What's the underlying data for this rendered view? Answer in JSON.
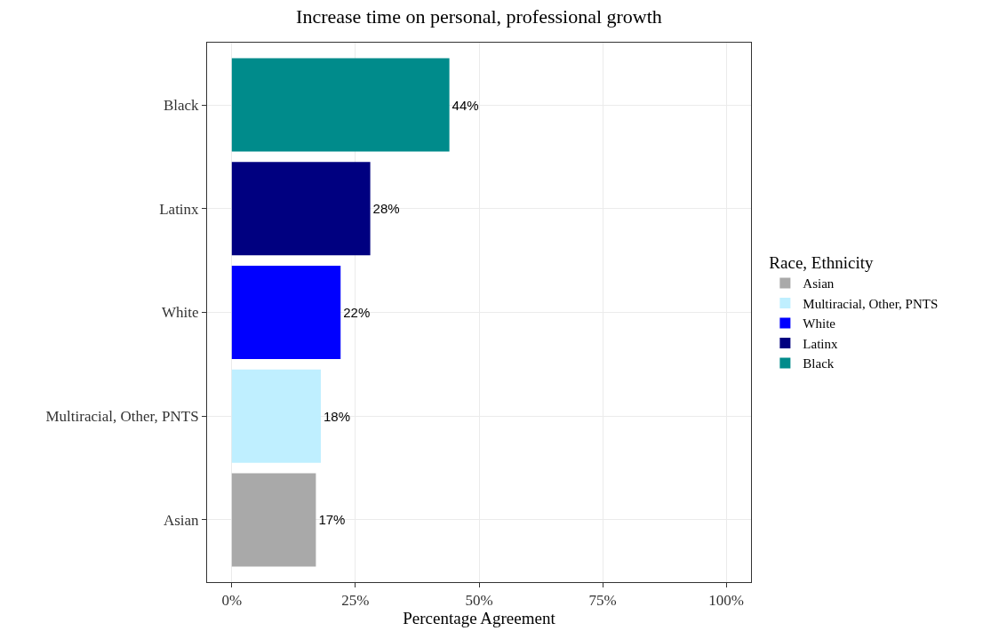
{
  "chart_data": {
    "type": "bar",
    "orientation": "horizontal",
    "title": "Increase time on personal, professional growth",
    "xlabel": "Percentage Agreement",
    "legend_title": "Race, Ethnicity",
    "categories": [
      "Black",
      "Latinx",
      "White",
      "Multiracial, Other, PNTS",
      "Asian"
    ],
    "series": [
      {
        "name": "Asian",
        "color": "#a9a9a9",
        "values": [
          null,
          null,
          null,
          null,
          17
        ],
        "value_labels": [
          null,
          null,
          null,
          null,
          "17%"
        ]
      },
      {
        "name": "Multiracial, Other, PNTS",
        "color": "#bfefff",
        "values": [
          null,
          null,
          null,
          18,
          null
        ],
        "value_labels": [
          null,
          null,
          null,
          "18%",
          null
        ]
      },
      {
        "name": "White",
        "color": "#0000ff",
        "values": [
          null,
          null,
          22,
          null,
          null
        ],
        "value_labels": [
          null,
          null,
          "22%",
          null,
          null
        ]
      },
      {
        "name": "Latinx",
        "color": "#000080",
        "values": [
          null,
          28,
          null,
          null,
          null
        ],
        "value_labels": [
          null,
          "28%",
          null,
          null,
          null
        ]
      },
      {
        "name": "Black",
        "color": "#008b8b",
        "values": [
          44,
          null,
          null,
          null,
          null
        ],
        "value_labels": [
          "44%",
          null,
          null,
          null,
          null
        ]
      }
    ],
    "xlim": [
      -5,
      105
    ],
    "xticks": [
      {
        "value": 0,
        "label": "0%"
      },
      {
        "value": 25,
        "label": "25%"
      },
      {
        "value": 50,
        "label": "50%"
      },
      {
        "value": 75,
        "label": "75%"
      },
      {
        "value": 100,
        "label": "100%"
      }
    ],
    "grid": true,
    "legend": "right"
  }
}
